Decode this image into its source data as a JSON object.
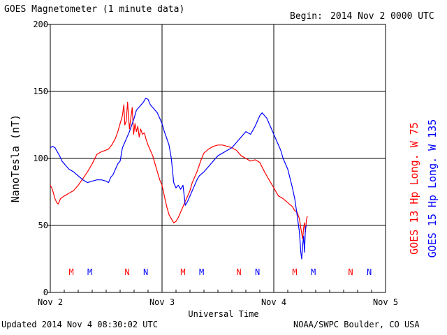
{
  "header": {
    "title": "GOES Magnetometer (1 minute data)",
    "begin_label": "Begin:",
    "begin_value": "2014 Nov 2 0000 UTC"
  },
  "footer": {
    "updated": "Updated 2014 Nov  4 08:30:02 UTC",
    "credit": "NOAA/SWPC Boulder, CO USA"
  },
  "chart_data": {
    "type": "line",
    "ylabel": "NanoTesla (nT)",
    "xlabel": "Universal Time",
    "ylim": [
      0,
      200
    ],
    "xlim": [
      0,
      72
    ],
    "yticks": [
      0,
      50,
      100,
      150,
      200
    ],
    "xtick_labels": [
      {
        "x": 0,
        "label": "Nov 2"
      },
      {
        "x": 24,
        "label": "Nov 3"
      },
      {
        "x": 48,
        "label": "Nov 4"
      },
      {
        "x": 72,
        "label": "Nov 5"
      }
    ],
    "grid": true,
    "colors": {
      "goes13": "#ff0000",
      "goes15": "#0000ff"
    },
    "side_labels": [
      {
        "text": "GOES 13 Hp  Long. W 75",
        "color": "#ff0000"
      },
      {
        "text": "GOES 15 Hp  Long. W 135",
        "color": "#0000ff"
      }
    ],
    "markers": [
      {
        "x": 4.5,
        "label": "M",
        "series": "goes13"
      },
      {
        "x": 8.5,
        "label": "M",
        "series": "goes15"
      },
      {
        "x": 16.5,
        "label": "N",
        "series": "goes13"
      },
      {
        "x": 20.5,
        "label": "N",
        "series": "goes15"
      },
      {
        "x": 28.5,
        "label": "M",
        "series": "goes13"
      },
      {
        "x": 32.5,
        "label": "M",
        "series": "goes15"
      },
      {
        "x": 40.5,
        "label": "N",
        "series": "goes13"
      },
      {
        "x": 44.5,
        "label": "N",
        "series": "goes15"
      },
      {
        "x": 52.5,
        "label": "M",
        "series": "goes13"
      },
      {
        "x": 56.5,
        "label": "M",
        "series": "goes15"
      },
      {
        "x": 64.5,
        "label": "N",
        "series": "goes13"
      },
      {
        "x": 68.5,
        "label": "N",
        "series": "goes15"
      }
    ],
    "series": [
      {
        "name": "GOES 13 Hp",
        "color": "#ff0000",
        "x": [
          0,
          0.3,
          0.6,
          1.0,
          1.4,
          1.7,
          2.2,
          3.0,
          4.0,
          5.0,
          6.0,
          7.0,
          8.0,
          9.0,
          10.0,
          10.5,
          11.0,
          11.8,
          12.5,
          13.2,
          14.0,
          14.5,
          15.0,
          15.5,
          15.8,
          16.0,
          16.3,
          16.6,
          17.0,
          17.3,
          17.6,
          17.9,
          18.2,
          18.5,
          18.8,
          19.1,
          19.4,
          19.8,
          20.2,
          20.6,
          21.0,
          21.5,
          22.0,
          22.5,
          23.0,
          23.5,
          24.0,
          24.5,
          25.0,
          25.5,
          26.0,
          26.5,
          27.0,
          27.5,
          28.0,
          28.5,
          29.0,
          29.5,
          30.0,
          30.5,
          31.0,
          31.5,
          32.0,
          32.5,
          33.0,
          34.0,
          35.0,
          36.0,
          37.0,
          38.0,
          39.0,
          40.0,
          41.0,
          42.0,
          43.0,
          44.0,
          45.0,
          46.0,
          47.0,
          48.0,
          48.5,
          49.0,
          50.0,
          51.0,
          52.0,
          52.5,
          53.0,
          53.5,
          53.8,
          54.0,
          54.2,
          54.4,
          54.6,
          54.8,
          55.0,
          55.2
        ],
        "y": [
          80,
          78,
          75,
          70,
          67,
          66,
          70,
          72,
          74,
          76,
          80,
          85,
          90,
          96,
          103,
          104,
          105,
          106,
          107,
          110,
          115,
          120,
          126,
          132,
          140,
          125,
          128,
          142,
          122,
          130,
          138,
          118,
          126,
          120,
          124,
          116,
          122,
          118,
          119,
          114,
          110,
          106,
          102,
          96,
          90,
          84,
          80,
          72,
          64,
          58,
          55,
          52,
          53,
          56,
          60,
          64,
          68,
          72,
          76,
          82,
          86,
          90,
          95,
          100,
          104,
          107,
          109,
          110,
          110,
          109,
          108,
          106,
          102,
          100,
          98,
          99,
          97,
          90,
          84,
          78,
          75,
          72,
          70,
          67,
          64,
          61,
          60,
          55,
          48,
          44,
          40,
          48,
          52,
          45,
          54,
          57
        ]
      },
      {
        "name": "GOES 15 Hp",
        "color": "#0000ff",
        "x": [
          0,
          0.5,
          1.0,
          1.5,
          2.0,
          2.5,
          3.0,
          3.5,
          4.0,
          5.0,
          6.0,
          7.0,
          8.0,
          9.0,
          10.0,
          11.0,
          12.0,
          12.5,
          13.0,
          13.5,
          14.0,
          14.5,
          15.0,
          15.5,
          16.0,
          16.5,
          17.0,
          17.5,
          18.0,
          18.5,
          19.0,
          19.5,
          20.0,
          20.5,
          21.0,
          21.5,
          22.0,
          22.5,
          23.0,
          23.5,
          24.0,
          24.5,
          25.0,
          25.5,
          26.0,
          26.5,
          27.0,
          27.5,
          28.0,
          28.5,
          29.0,
          29.5,
          30.0,
          30.5,
          31.0,
          31.5,
          32.0,
          33.0,
          34.0,
          35.0,
          36.0,
          37.0,
          38.0,
          39.0,
          40.0,
          41.0,
          42.0,
          43.0,
          44.0,
          45.0,
          45.5,
          46.0,
          46.5,
          47.0,
          47.5,
          48.0,
          48.5,
          49.0,
          49.5,
          50.0,
          51.0,
          52.0,
          52.5,
          53.0,
          53.5,
          53.8,
          54.0,
          54.2,
          54.4,
          54.6,
          54.8,
          55.0
        ],
        "y": [
          108,
          109,
          108,
          105,
          102,
          98,
          96,
          94,
          92,
          90,
          87,
          84,
          82,
          83,
          84,
          84,
          83,
          82,
          86,
          88,
          92,
          96,
          98,
          108,
          112,
          116,
          120,
          125,
          130,
          136,
          138,
          140,
          142,
          145,
          144,
          140,
          138,
          136,
          134,
          130,
          126,
          120,
          115,
          110,
          100,
          82,
          78,
          80,
          77,
          80,
          65,
          68,
          72,
          76,
          80,
          84,
          87,
          90,
          94,
          98,
          102,
          104,
          106,
          108,
          112,
          116,
          120,
          118,
          124,
          132,
          134,
          132,
          130,
          126,
          122,
          118,
          114,
          110,
          106,
          100,
          92,
          78,
          70,
          58,
          45,
          30,
          25,
          35,
          42,
          30,
          48,
          50
        ]
      }
    ]
  }
}
